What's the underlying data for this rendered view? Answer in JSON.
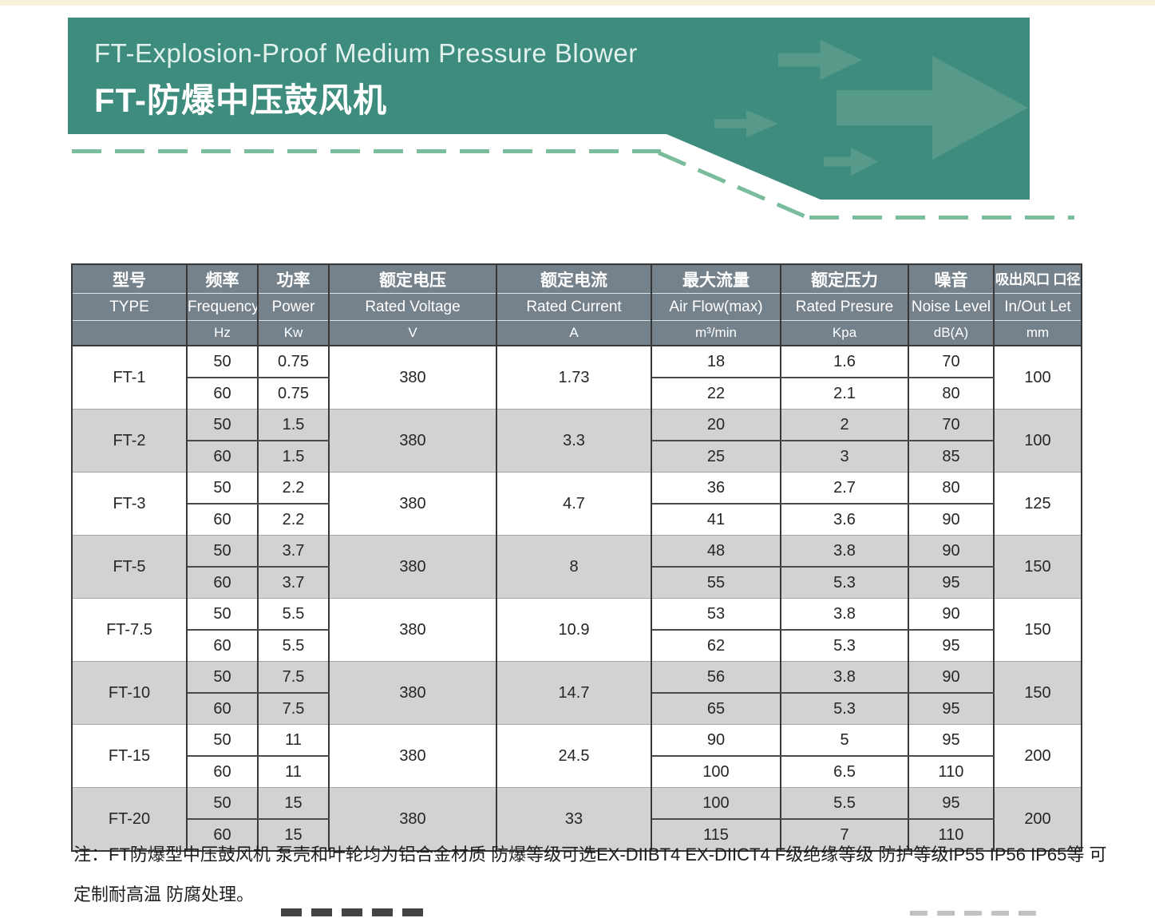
{
  "colors": {
    "banner_bg": "#3e8c7d",
    "banner_arrow": "#579a8a",
    "dash_green": "#79bd9c",
    "top_strip": "#f9f2da",
    "table_header_bg": "#75828b",
    "row_alt_bg": "#d2d2d2",
    "border_dark": "#383838",
    "text_dark": "#262626"
  },
  "banner": {
    "title_en": "FT-Explosion-Proof Medium Pressure Blower",
    "title_zh": "FT-防爆中压鼓风机"
  },
  "table": {
    "columns": [
      {
        "zh": "型号",
        "en": "TYPE",
        "unit": ""
      },
      {
        "zh": "频率",
        "en": "Frequency",
        "unit": "Hz"
      },
      {
        "zh": "功率",
        "en": "Power",
        "unit": "Kw"
      },
      {
        "zh": "额定电压",
        "en": "Rated Voltage",
        "unit": "V"
      },
      {
        "zh": "额定电流",
        "en": "Rated Current",
        "unit": "A"
      },
      {
        "zh": "最大流量",
        "en": "Air Flow(max)",
        "unit": "m³/min"
      },
      {
        "zh": "额定压力",
        "en": "Rated Presure",
        "unit": "Kpa"
      },
      {
        "zh": "噪音",
        "en": "Noise Level",
        "unit": "dB(A)"
      },
      {
        "zh": "吸出风口 口径",
        "en": "In/Out Let",
        "unit": "mm"
      }
    ],
    "rows": [
      {
        "type": "FT-1",
        "voltage": "380",
        "current": "1.73",
        "inout": "100",
        "sub": [
          {
            "hz": "50",
            "kw": "0.75",
            "flow": "18",
            "kpa": "1.6",
            "db": "70"
          },
          {
            "hz": "60",
            "kw": "0.75",
            "flow": "22",
            "kpa": "2.1",
            "db": "80"
          }
        ]
      },
      {
        "type": "FT-2",
        "voltage": "380",
        "current": "3.3",
        "inout": "100",
        "sub": [
          {
            "hz": "50",
            "kw": "1.5",
            "flow": "20",
            "kpa": "2",
            "db": "70"
          },
          {
            "hz": "60",
            "kw": "1.5",
            "flow": "25",
            "kpa": "3",
            "db": "85"
          }
        ]
      },
      {
        "type": "FT-3",
        "voltage": "380",
        "current": "4.7",
        "inout": "125",
        "sub": [
          {
            "hz": "50",
            "kw": "2.2",
            "flow": "36",
            "kpa": "2.7",
            "db": "80"
          },
          {
            "hz": "60",
            "kw": "2.2",
            "flow": "41",
            "kpa": "3.6",
            "db": "90"
          }
        ]
      },
      {
        "type": "FT-5",
        "voltage": "380",
        "current": "8",
        "inout": "150",
        "sub": [
          {
            "hz": "50",
            "kw": "3.7",
            "flow": "48",
            "kpa": "3.8",
            "db": "90"
          },
          {
            "hz": "60",
            "kw": "3.7",
            "flow": "55",
            "kpa": "5.3",
            "db": "95"
          }
        ]
      },
      {
        "type": "FT-7.5",
        "voltage": "380",
        "current": "10.9",
        "inout": "150",
        "sub": [
          {
            "hz": "50",
            "kw": "5.5",
            "flow": "53",
            "kpa": "3.8",
            "db": "90"
          },
          {
            "hz": "60",
            "kw": "5.5",
            "flow": "62",
            "kpa": "5.3",
            "db": "95"
          }
        ]
      },
      {
        "type": "FT-10",
        "voltage": "380",
        "current": "14.7",
        "inout": "150",
        "sub": [
          {
            "hz": "50",
            "kw": "7.5",
            "flow": "56",
            "kpa": "3.8",
            "db": "90"
          },
          {
            "hz": "60",
            "kw": "7.5",
            "flow": "65",
            "kpa": "5.3",
            "db": "95"
          }
        ]
      },
      {
        "type": "FT-15",
        "voltage": "380",
        "current": "24.5",
        "inout": "200",
        "sub": [
          {
            "hz": "50",
            "kw": "11",
            "flow": "90",
            "kpa": "5",
            "db": "95"
          },
          {
            "hz": "60",
            "kw": "11",
            "flow": "100",
            "kpa": "6.5",
            "db": "110"
          }
        ]
      },
      {
        "type": "FT-20",
        "voltage": "380",
        "current": "33",
        "inout": "200",
        "sub": [
          {
            "hz": "50",
            "kw": "15",
            "flow": "100",
            "kpa": "5.5",
            "db": "95"
          },
          {
            "hz": "60",
            "kw": "15",
            "flow": "115",
            "kpa": "7",
            "db": "110"
          }
        ]
      }
    ]
  },
  "note": {
    "line1": "注：FT防爆型中压鼓风机 泵壳和叶轮均为铝合金材质 防爆等级可选EX-DIIBT4 EX-DIICT4  F级绝缘等级  防护等级IP55 IP56  IP65等 可",
    "line2": "定制耐高温 防腐处理。"
  }
}
